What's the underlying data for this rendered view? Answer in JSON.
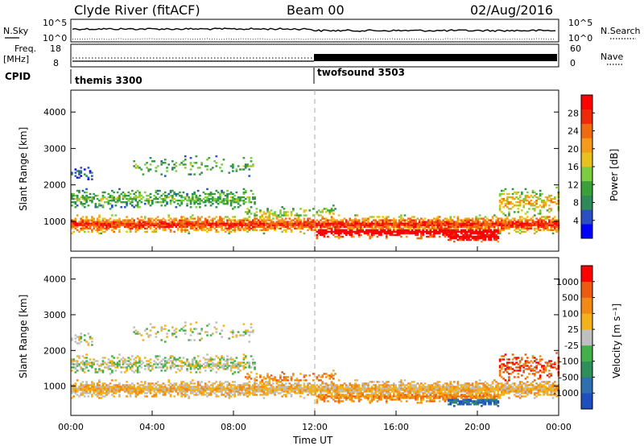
{
  "header": {
    "station": "Clyde River (fitACF)",
    "beam": "Beam 00",
    "date": "02/Aug/2016"
  },
  "top_panels": {
    "nsky_label": "N.Sky",
    "nsky_ticks": [
      "10^5",
      "10^0"
    ],
    "nsearch_label": "N.Search",
    "nsearch_ticks": [
      "10^5",
      "10^0"
    ],
    "freq_label_1": "Freq.",
    "freq_label_2": "[MHz]",
    "freq_ticks": [
      "18",
      "8"
    ],
    "nave_label": "Nave",
    "nave_ticks": [
      "60",
      "0"
    ],
    "cpid_label": "CPID",
    "programs": [
      {
        "name": "themis 3300",
        "start_hour": 0
      },
      {
        "name": "twofsound 3503",
        "start_hour": 12
      }
    ]
  },
  "chart_data": [
    {
      "type": "heatmap",
      "name": "power-panel",
      "xlabel": "",
      "ylabel": "Slant Range [km]",
      "x_ticks": [
        "00:00",
        "04:00",
        "08:00",
        "12:00",
        "16:00",
        "20:00",
        "00:00"
      ],
      "x_range_hours": [
        0,
        24
      ],
      "y_ticks": [
        1000,
        2000,
        3000,
        4000
      ],
      "ylim": [
        180,
        4600
      ],
      "colorbar_label": "Power [dB]",
      "colorbar_ticks": [
        "28",
        "24",
        "20",
        "16",
        "12",
        "8",
        "4"
      ],
      "colors": [
        "#0000ff",
        "#2b4fc0",
        "#2f8a5a",
        "#3aa03a",
        "#7ccd3f",
        "#e8c21c",
        "#f59a1a",
        "#f06a10",
        "#ee2a0a",
        "#ff0000"
      ]
    },
    {
      "type": "heatmap",
      "name": "velocity-panel",
      "xlabel": "Time UT",
      "ylabel": "Slant Range [km]",
      "x_ticks": [
        "00:00",
        "04:00",
        "08:00",
        "12:00",
        "16:00",
        "20:00",
        "00:00"
      ],
      "x_range_hours": [
        0,
        24
      ],
      "y_ticks": [
        1000,
        2000,
        3000,
        4000
      ],
      "ylim": [
        180,
        4600
      ],
      "colorbar_label": "Velocity [m s⁻¹]",
      "colorbar_ticks": [
        "1000",
        "500",
        "100",
        "25",
        "-25",
        "-100",
        "-500",
        "-1000"
      ],
      "colors": [
        "#1f4fbf",
        "#2e6fb0",
        "#2f8f5a",
        "#44b04a",
        "#bfbfbf",
        "#f3b21a",
        "#f08a14",
        "#ee5a10",
        "#ff0000"
      ]
    }
  ]
}
